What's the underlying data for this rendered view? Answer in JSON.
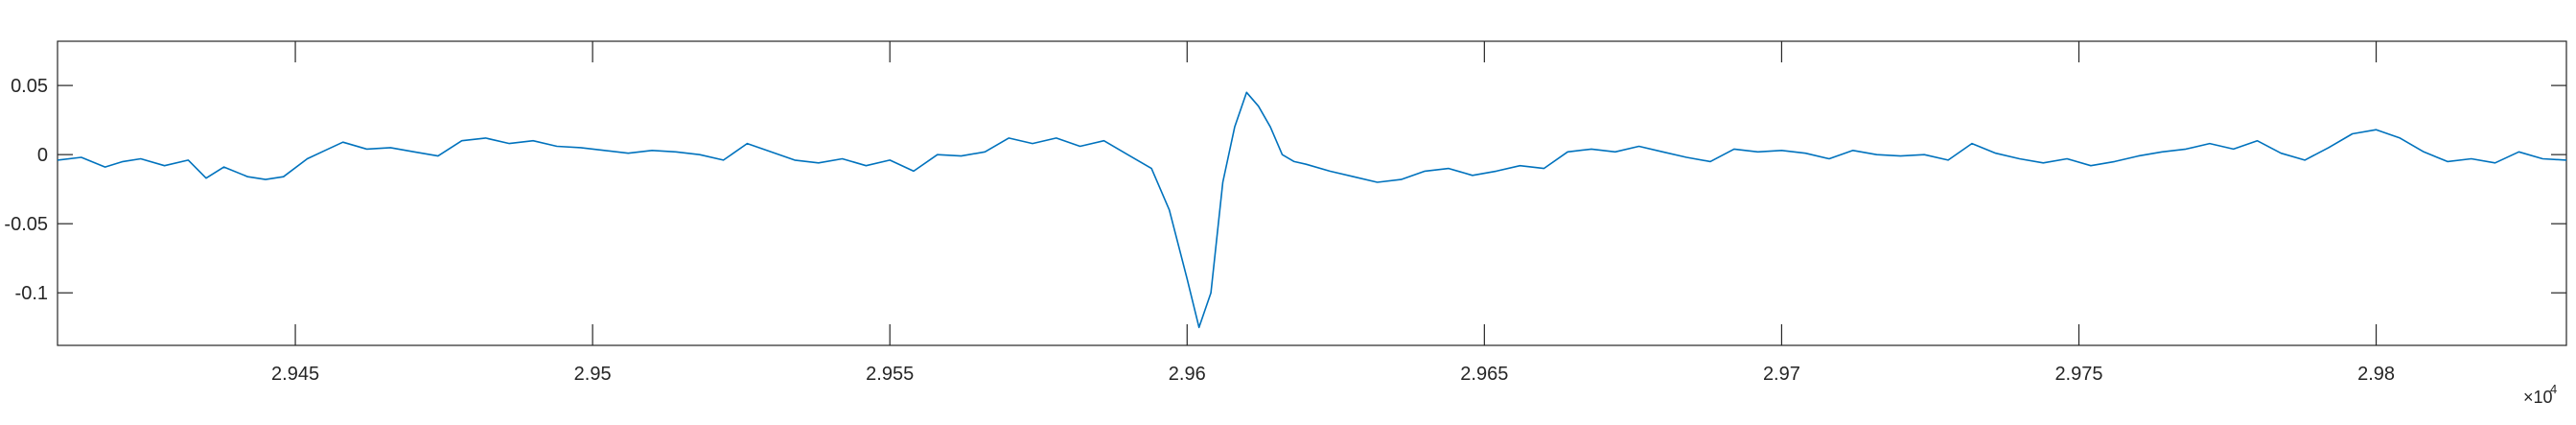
{
  "chart_data": {
    "type": "line",
    "title": "",
    "xlabel": "",
    "ylabel": "",
    "xlim": [
      29410,
      29832
    ],
    "ylim": [
      -0.138,
      0.082
    ],
    "x_ticks": [
      29450,
      29500,
      29550,
      29600,
      29650,
      29700,
      29750,
      29800
    ],
    "x_tick_labels": [
      "2.945",
      "2.95",
      "2.955",
      "2.96",
      "2.965",
      "2.97",
      "2.975",
      "2.98"
    ],
    "x_exponent_label": "×10",
    "x_exponent_power": "4",
    "y_ticks": [
      0.05,
      0,
      -0.05,
      -0.1
    ],
    "y_tick_labels": [
      "0.05",
      "0",
      "-0.05",
      "-0.1"
    ],
    "grid": false,
    "series": [
      {
        "color": "#0072BD",
        "x": [
          29410,
          29414,
          29418,
          29421,
          29424,
          29428,
          29432,
          29435,
          29438,
          29442,
          29445,
          29448,
          29452,
          29455,
          29458,
          29462,
          29466,
          29470,
          29474,
          29478,
          29482,
          29486,
          29490,
          29494,
          29498,
          29502,
          29506,
          29510,
          29514,
          29518,
          29522,
          29526,
          29530,
          29534,
          29538,
          29542,
          29546,
          29550,
          29554,
          29558,
          29562,
          29566,
          29570,
          29574,
          29578,
          29582,
          29586,
          29590,
          29594,
          29597,
          29600,
          29602,
          29604,
          29605,
          29606,
          29608,
          29610,
          29612,
          29614,
          29616,
          29618,
          29620,
          29624,
          29628,
          29632,
          29636,
          29640,
          29644,
          29648,
          29652,
          29656,
          29660,
          29664,
          29668,
          29672,
          29676,
          29680,
          29684,
          29688,
          29692,
          29696,
          29700,
          29704,
          29708,
          29712,
          29716,
          29720,
          29724,
          29728,
          29732,
          29736,
          29740,
          29744,
          29748,
          29752,
          29756,
          29760,
          29764,
          29768,
          29772,
          29776,
          29780,
          29784,
          29788,
          29792,
          29796,
          29800,
          29804,
          29808,
          29812,
          29816,
          29820,
          29824,
          29828,
          29832
        ],
        "y": [
          -0.004,
          -0.002,
          -0.009,
          -0.005,
          -0.003,
          -0.008,
          -0.004,
          -0.017,
          -0.009,
          -0.016,
          -0.018,
          -0.016,
          -0.003,
          0.003,
          0.009,
          0.004,
          0.005,
          0.002,
          -0.001,
          0.01,
          0.012,
          0.008,
          0.01,
          0.006,
          0.005,
          0.003,
          0.001,
          0.003,
          0.002,
          0.0,
          -0.004,
          0.008,
          0.002,
          -0.004,
          -0.006,
          -0.003,
          -0.008,
          -0.004,
          -0.012,
          0.0,
          -0.001,
          0.002,
          0.012,
          0.008,
          0.012,
          0.006,
          0.01,
          0.0,
          -0.01,
          -0.04,
          -0.09,
          -0.125,
          -0.1,
          -0.06,
          -0.02,
          0.02,
          0.045,
          0.035,
          0.02,
          0.0,
          -0.005,
          -0.007,
          -0.012,
          -0.016,
          -0.02,
          -0.018,
          -0.012,
          -0.01,
          -0.015,
          -0.012,
          -0.008,
          -0.01,
          0.002,
          0.004,
          0.002,
          0.006,
          0.002,
          -0.002,
          -0.005,
          0.004,
          0.002,
          0.003,
          0.001,
          -0.003,
          0.003,
          0.0,
          -0.001,
          0.0,
          -0.004,
          0.008,
          0.001,
          -0.003,
          -0.006,
          -0.003,
          -0.008,
          -0.005,
          -0.001,
          0.002,
          0.004,
          0.008,
          0.004,
          0.01,
          0.001,
          -0.004,
          0.005,
          0.015,
          0.018,
          0.012,
          0.002,
          -0.005,
          -0.003,
          -0.006,
          0.002,
          -0.003,
          -0.004
        ]
      }
    ]
  }
}
